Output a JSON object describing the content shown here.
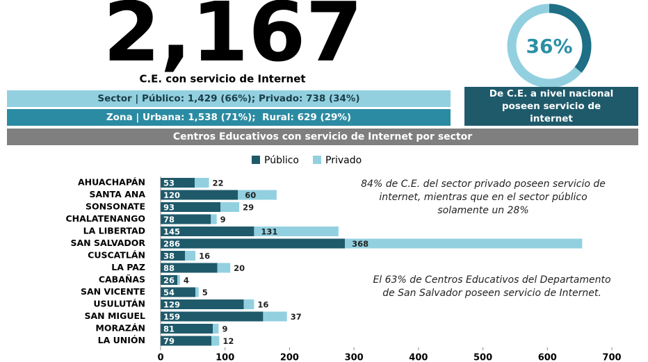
{
  "header": {
    "total": "2,167",
    "total_caption": "C.E. con servicio de Internet",
    "sector": "Sector | Público: 1,429 (66%); Privado: 738 (34%)",
    "zona": "Zona | Urbana: 1,538 (71%);  Rural: 629 (29%)",
    "donut": {
      "value": 36,
      "label": "36%",
      "caption": "De C.E. a nivel nacional poseen servicio de internet"
    }
  },
  "chart_data": {
    "type": "bar",
    "orientation": "horizontal",
    "stacked": true,
    "title": "Centros Educativos con servicio de Internet  por sector",
    "categories": [
      "AHUACHAPÁN",
      "SANTA ANA",
      "SONSONATE",
      "CHALATENANGO",
      "LA LIBERTAD",
      "SAN SALVADOR",
      "CUSCATLÁN",
      "LA PAZ",
      "CABAÑAS",
      "SAN VICENTE",
      "USULUTÁN",
      "SAN MIGUEL",
      "MORAZÁN",
      "LA UNIÓN"
    ],
    "series": [
      {
        "name": "Público",
        "color": "#1f5a6b",
        "values": [
          53,
          120,
          93,
          78,
          145,
          286,
          38,
          88,
          26,
          54,
          129,
          159,
          81,
          79
        ]
      },
      {
        "name": "Privado",
        "color": "#92d0e0",
        "values": [
          22,
          60,
          29,
          9,
          131,
          368,
          16,
          20,
          4,
          5,
          16,
          37,
          9,
          12
        ]
      }
    ],
    "xlim": [
      0,
      700
    ],
    "xticks": [
      0,
      100,
      200,
      300,
      400,
      500,
      600,
      700
    ],
    "legend": "top",
    "annotations": [
      "84% de C.E. del sector privado poseen servicio de internet, mientras que en el sector público solamente un 28%",
      "El 63% de Centros Educativos del Departamento de San Salvador poseen servicio de Internet."
    ]
  }
}
